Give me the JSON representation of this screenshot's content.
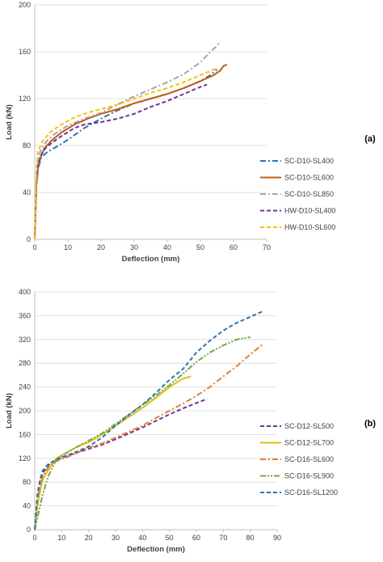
{
  "chart_data": [
    {
      "type": "line",
      "panel_label": "(a)",
      "xlabel": "Deflection (mm)",
      "ylabel": "Load (kN)",
      "xlim": [
        0,
        70
      ],
      "ylim": [
        0,
        200
      ],
      "xticks": [
        0,
        10,
        20,
        30,
        40,
        50,
        60,
        70
      ],
      "yticks": [
        0,
        40,
        80,
        120,
        160,
        200
      ],
      "grid": "horizontal",
      "legend": "right",
      "series": [
        {
          "name": "SC-D10-SL400",
          "color": "#2e75b6",
          "dash": "dashdot",
          "x": [
            0,
            0.5,
            1,
            2,
            4,
            6,
            10,
            15,
            20,
            25,
            30,
            35,
            40,
            45,
            50,
            53,
            55
          ],
          "y": [
            0,
            45,
            60,
            70,
            75,
            78,
            85,
            95,
            103,
            110,
            116,
            120,
            124,
            129,
            135,
            140,
            145
          ]
        },
        {
          "name": "SC-D10-SL600",
          "color": "#c55a11",
          "dash": "solid",
          "x": [
            0,
            0.5,
            1,
            2,
            3,
            5,
            8,
            12,
            16,
            20,
            25,
            30,
            35,
            40,
            45,
            50,
            54,
            56,
            57,
            58
          ],
          "y": [
            0,
            45,
            62,
            72,
            78,
            84,
            91,
            98,
            103,
            107,
            111,
            116,
            120,
            124,
            129,
            135,
            140,
            144,
            148,
            149
          ]
        },
        {
          "name": "SC-D10-SL850",
          "color": "#a5a5a5",
          "dash": "dashdot",
          "x": [
            0,
            0.5,
            1,
            2,
            4,
            6,
            10,
            15,
            20,
            25,
            30,
            35,
            40,
            45,
            50,
            53,
            55,
            56
          ],
          "y": [
            0,
            50,
            68,
            78,
            85,
            90,
            97,
            103,
            108,
            115,
            122,
            128,
            134,
            141,
            151,
            160,
            165,
            169
          ]
        },
        {
          "name": "HW-D10-SL400",
          "color": "#7030a0",
          "dash": "dash",
          "x": [
            0,
            0.5,
            1,
            2,
            3,
            5,
            8,
            12,
            15,
            20,
            25,
            30,
            35,
            40,
            45,
            50,
            52
          ],
          "y": [
            0,
            50,
            65,
            72,
            77,
            82,
            88,
            95,
            98,
            100,
            103,
            107,
            113,
            118,
            124,
            130,
            132
          ]
        },
        {
          "name": "HW-D10-SL600",
          "color": "#ffc000",
          "dash": "dash",
          "x": [
            0,
            0.5,
            1,
            2,
            3,
            5,
            8,
            12,
            16,
            20,
            25,
            30,
            35,
            40,
            45,
            50,
            55
          ],
          "y": [
            0,
            60,
            75,
            82,
            86,
            92,
            98,
            104,
            108,
            111,
            115,
            120,
            125,
            129,
            134,
            140,
            146
          ]
        }
      ]
    },
    {
      "type": "line",
      "panel_label": "(b)",
      "xlabel": "Deflection (mm)",
      "ylabel": "Load (kN)",
      "xlim": [
        0,
        90
      ],
      "ylim": [
        0,
        400
      ],
      "xticks": [
        0,
        10,
        20,
        30,
        40,
        50,
        60,
        70,
        80,
        90
      ],
      "yticks": [
        0,
        40,
        80,
        120,
        160,
        200,
        240,
        280,
        320,
        360,
        400
      ],
      "grid": "horizontal",
      "legend": "right",
      "series": [
        {
          "name": "SC-D12-SL500",
          "color": "#7030a0",
          "dash": "dash",
          "x": [
            0,
            1,
            2,
            3,
            5,
            8,
            12,
            16,
            20,
            25,
            30,
            35,
            40,
            45,
            50,
            55,
            60,
            64
          ],
          "y": [
            0,
            55,
            80,
            95,
            108,
            118,
            124,
            130,
            136,
            143,
            152,
            162,
            172,
            183,
            194,
            204,
            213,
            220
          ]
        },
        {
          "name": "SC-D12-SL700",
          "color": "#e3c00a",
          "dash": "solid",
          "x": [
            0,
            1,
            2,
            3,
            5,
            8,
            12,
            16,
            20,
            25,
            30,
            35,
            40,
            45,
            50,
            55,
            58
          ],
          "y": [
            0,
            40,
            65,
            85,
            100,
            120,
            130,
            140,
            147,
            160,
            175,
            190,
            205,
            222,
            240,
            254,
            258
          ]
        },
        {
          "name": "SC-D16-SL600",
          "color": "#ed7d31",
          "dash": "dashdot",
          "x": [
            0,
            1,
            2,
            3,
            5,
            8,
            12,
            16,
            20,
            25,
            30,
            35,
            40,
            45,
            50,
            55,
            60,
            65,
            70,
            75,
            80,
            85
          ],
          "y": [
            0,
            50,
            75,
            90,
            105,
            115,
            122,
            130,
            138,
            145,
            155,
            165,
            175,
            188,
            200,
            212,
            225,
            240,
            258,
            275,
            295,
            313
          ]
        },
        {
          "name": "SC-D16-SL900",
          "color": "#70ad47",
          "dash": "dashdotdot",
          "x": [
            0,
            1,
            2,
            3,
            5,
            8,
            12,
            16,
            20,
            25,
            30,
            35,
            40,
            45,
            50,
            55,
            60,
            65,
            70,
            75,
            80
          ],
          "y": [
            0,
            20,
            40,
            60,
            90,
            118,
            130,
            140,
            150,
            162,
            178,
            194,
            210,
            226,
            243,
            262,
            282,
            298,
            310,
            320,
            324
          ]
        },
        {
          "name": "SC-D16-SL1200",
          "color": "#2e75b6",
          "dash": "dash",
          "x": [
            0,
            1,
            2,
            3,
            5,
            8,
            12,
            16,
            20,
            25,
            30,
            35,
            40,
            45,
            50,
            55,
            60,
            65,
            70,
            75,
            80,
            85
          ],
          "y": [
            0,
            60,
            85,
            100,
            110,
            118,
            125,
            132,
            140,
            155,
            175,
            193,
            210,
            230,
            252,
            270,
            298,
            318,
            335,
            348,
            358,
            368
          ]
        }
      ]
    }
  ]
}
